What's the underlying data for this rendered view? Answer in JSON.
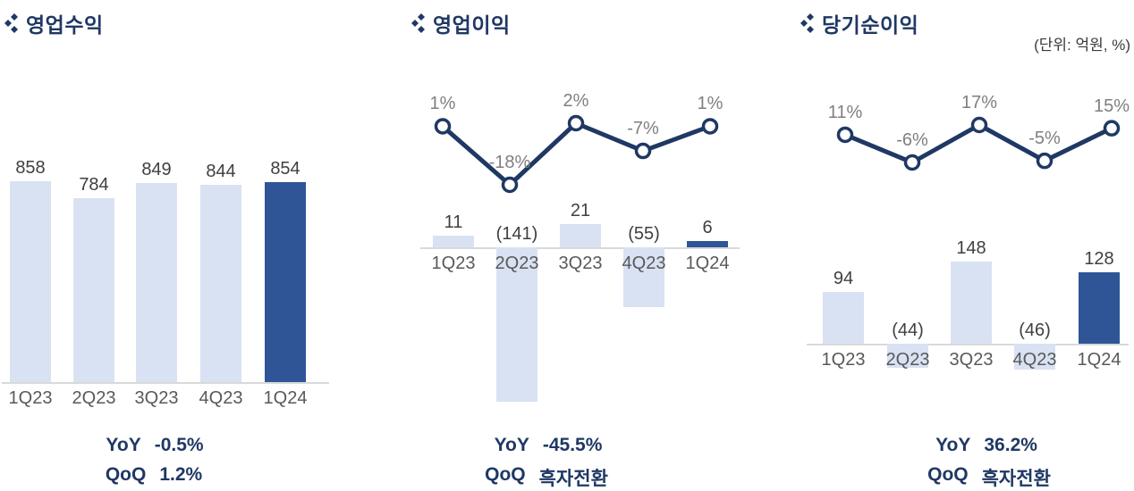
{
  "unit_label": "(단위: 억원, %)",
  "colors": {
    "title_navy": "#1F3864",
    "bar_light": "#D9E2F3",
    "bar_highlight": "#2F5597",
    "line_navy": "#1F3864",
    "marker_fill": "#FFFFFF",
    "axis_gray": "#D9D9D9",
    "value_label_gray": "#404040",
    "axis_label_gray": "#595959",
    "pct_label_gray": "#7F7F7F"
  },
  "chart_data": [
    {
      "type": "bar",
      "title": "영업수익",
      "categories": [
        "1Q23",
        "2Q23",
        "3Q23",
        "4Q23",
        "1Q24"
      ],
      "values": [
        858,
        784,
        849,
        844,
        854
      ],
      "value_labels": [
        "858",
        "784",
        "849",
        "844",
        "854"
      ],
      "highlight_index": 4,
      "ylim": [
        0,
        900
      ],
      "legend_position": "none",
      "grid": false,
      "footer": {
        "yoy_label": "YoY",
        "yoy_value": "-0.5%",
        "qoq_label": "QoQ",
        "qoq_value": "1.2%"
      }
    },
    {
      "type": "bar",
      "title": "영업이익",
      "categories": [
        "1Q23",
        "2Q23",
        "3Q23",
        "4Q23",
        "1Q24"
      ],
      "series": [
        {
          "name": "operating-profit-bars",
          "type": "bar",
          "values": [
            11,
            -141,
            21,
            -55,
            6
          ],
          "labels": [
            "11",
            "(141)",
            "21",
            "(55)",
            "6"
          ]
        },
        {
          "name": "growth-rate-line",
          "type": "line",
          "values": [
            1,
            -18,
            2,
            -7,
            1
          ],
          "labels": [
            "1%",
            "-18%",
            "2%",
            "-7%",
            "1%"
          ]
        }
      ],
      "highlight_index": 4,
      "ylim": [
        -160,
        30
      ],
      "legend_position": "none",
      "grid": false,
      "footer": {
        "yoy_label": "YoY",
        "yoy_value": "-45.5%",
        "qoq_label": "QoQ",
        "qoq_value": "흑자전환"
      }
    },
    {
      "type": "bar",
      "title": "당기순이익",
      "categories": [
        "1Q23",
        "2Q23",
        "3Q23",
        "4Q23",
        "1Q24"
      ],
      "series": [
        {
          "name": "net-income-bars",
          "type": "bar",
          "values": [
            94,
            -44,
            148,
            -46,
            128
          ],
          "labels": [
            "94",
            "(44)",
            "148",
            "(46)",
            "128"
          ]
        },
        {
          "name": "growth-rate-line",
          "type": "line",
          "values": [
            11,
            -6,
            17,
            -5,
            15
          ],
          "labels": [
            "11%",
            "-6%",
            "17%",
            "-5%",
            "15%"
          ]
        }
      ],
      "highlight_index": 4,
      "ylim": [
        -60,
        160
      ],
      "legend_position": "none",
      "grid": false,
      "footer": {
        "yoy_label": "YoY",
        "yoy_value": "36.2%",
        "qoq_label": "QoQ",
        "qoq_value": "흑자전환"
      }
    }
  ]
}
